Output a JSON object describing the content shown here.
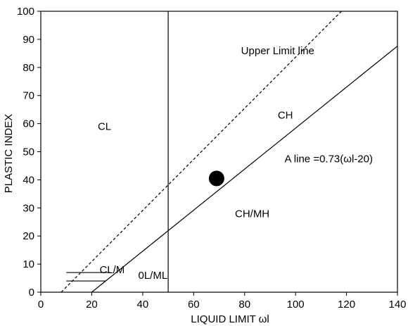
{
  "chart_data": {
    "type": "scatter",
    "title": "",
    "xlabel": "LIQUID  LIMIT  ωl",
    "ylabel": "PLASTIC  INDEX",
    "xlim": [
      0,
      140
    ],
    "ylim": [
      0,
      100
    ],
    "xticks": [
      "0",
      "20",
      "40",
      "60",
      "80",
      "100",
      "120",
      "140"
    ],
    "yticks": [
      "0",
      "10",
      "20",
      "30",
      "40",
      "50",
      "60",
      "70",
      "80",
      "90",
      "100"
    ],
    "grid": false,
    "legend": "none",
    "points": [
      {
        "x": 69,
        "y": 40.5
      }
    ],
    "lines": [
      {
        "label": "A  line =0.73(ωl-20)",
        "style": "solid",
        "x": [
          20,
          140
        ],
        "y": [
          0,
          87.6
        ]
      },
      {
        "label": "Upper Limit line",
        "style": "dashed",
        "x": [
          8,
          118
        ],
        "y": [
          0,
          100
        ]
      },
      {
        "label": "",
        "style": "solid",
        "x": [
          50,
          50
        ],
        "y": [
          0,
          100
        ]
      },
      {
        "label": "",
        "style": "solid",
        "x": [
          10,
          27.5
        ],
        "y": [
          7,
          7
        ]
      },
      {
        "label": "",
        "style": "solid",
        "x": [
          10,
          25.5
        ],
        "y": [
          4,
          4
        ]
      }
    ],
    "regions": [
      {
        "label": "CL",
        "x": 25,
        "y": 59
      },
      {
        "label": "CH",
        "x": 96,
        "y": 63
      },
      {
        "label": "CH/MH",
        "x": 83,
        "y": 28
      },
      {
        "label": "CL/M",
        "x": 28,
        "y": 8
      },
      {
        "label": "0L/ML",
        "x": 44,
        "y": 6
      },
      {
        "label": "Upper Limit line",
        "x": 93,
        "y": 86
      },
      {
        "label": "A  line =0.73(ωl-20)",
        "x": 113,
        "y": 47.5
      }
    ]
  }
}
